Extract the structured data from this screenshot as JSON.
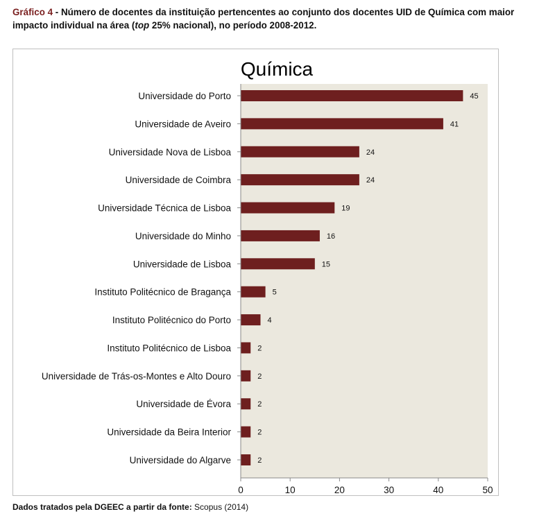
{
  "caption": {
    "label": "Gráfico 4",
    "text_before_italic": " - Número de docentes da instituição pertencentes ao conjunto dos docentes UID de Química com maior impacto individual na área (",
    "italic": "top",
    "text_after_italic": " 25% nacional), no período 2008-2012."
  },
  "source": {
    "bold": "Dados tratados pela DGEEC a partir da fonte:",
    "text": " Scopus (2014)"
  },
  "colors": {
    "bar": "#6e1f1f",
    "plot_background": "#ebe8de",
    "caption_label": "#7a1f1f",
    "axis": "#888888"
  },
  "chart_data": {
    "type": "bar",
    "orientation": "horizontal",
    "title": "Química",
    "categories": [
      "Universidade do Porto",
      "Universidade de Aveiro",
      "Universidade Nova de Lisboa",
      "Universidade de Coimbra",
      "Universidade Técnica de Lisboa",
      "Universidade do Minho",
      "Universidade de Lisboa",
      "Instituto Politécnico de Bragança",
      "Instituto Politécnico do Porto",
      "Instituto Politécnico de Lisboa",
      "Universidade de Trás-os-Montes e Alto Douro",
      "Universidade de Évora",
      "Universidade da Beira Interior",
      "Universidade do Algarve"
    ],
    "values": [
      45,
      41,
      24,
      24,
      19,
      16,
      15,
      5,
      4,
      2,
      2,
      2,
      2,
      2
    ],
    "xlim": [
      0,
      50
    ],
    "xticks": [
      0,
      10,
      20,
      30,
      40,
      50
    ],
    "xlabel": "",
    "ylabel": "",
    "grid": false,
    "legend": "none",
    "data_labels": true
  }
}
